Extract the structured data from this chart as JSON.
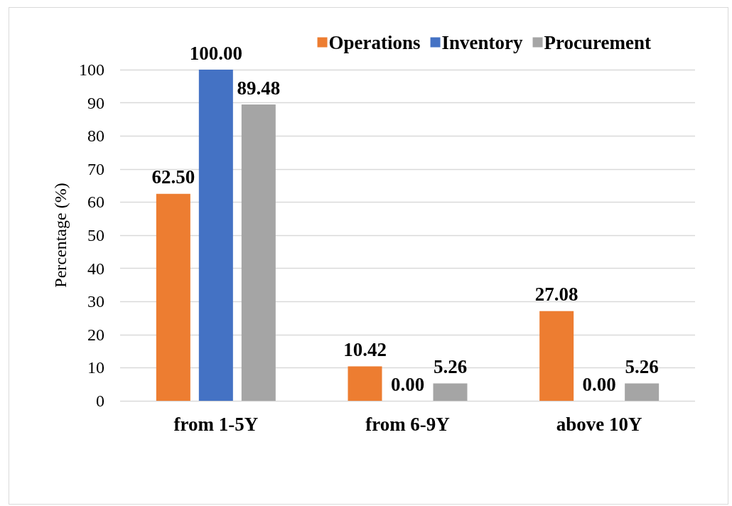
{
  "chart_data": {
    "type": "bar",
    "ylabel": "Percentage (%)",
    "categories": [
      "from 1-5Y",
      "from 6-9Y",
      "above 10Y"
    ],
    "series": [
      {
        "name": "Operations",
        "color": "#ed7d31",
        "values": [
          62.5,
          10.42,
          27.08
        ],
        "value_labels": [
          "62.50",
          "10.42",
          "27.08"
        ]
      },
      {
        "name": "Inventory",
        "color": "#4472c4",
        "values": [
          100,
          0,
          0
        ],
        "value_labels": [
          "100.00",
          "0.00",
          "0.00"
        ]
      },
      {
        "name": "Procurement",
        "color": "#a5a5a5",
        "values": [
          89.48,
          5.26,
          5.26
        ],
        "value_labels": [
          "89.48",
          "5.26",
          "5.26"
        ]
      }
    ],
    "ylim": [
      0,
      100
    ],
    "yticks": [
      0,
      10,
      20,
      30,
      40,
      50,
      60,
      70,
      80,
      90,
      100
    ],
    "grid": "y",
    "legend": "top right"
  }
}
